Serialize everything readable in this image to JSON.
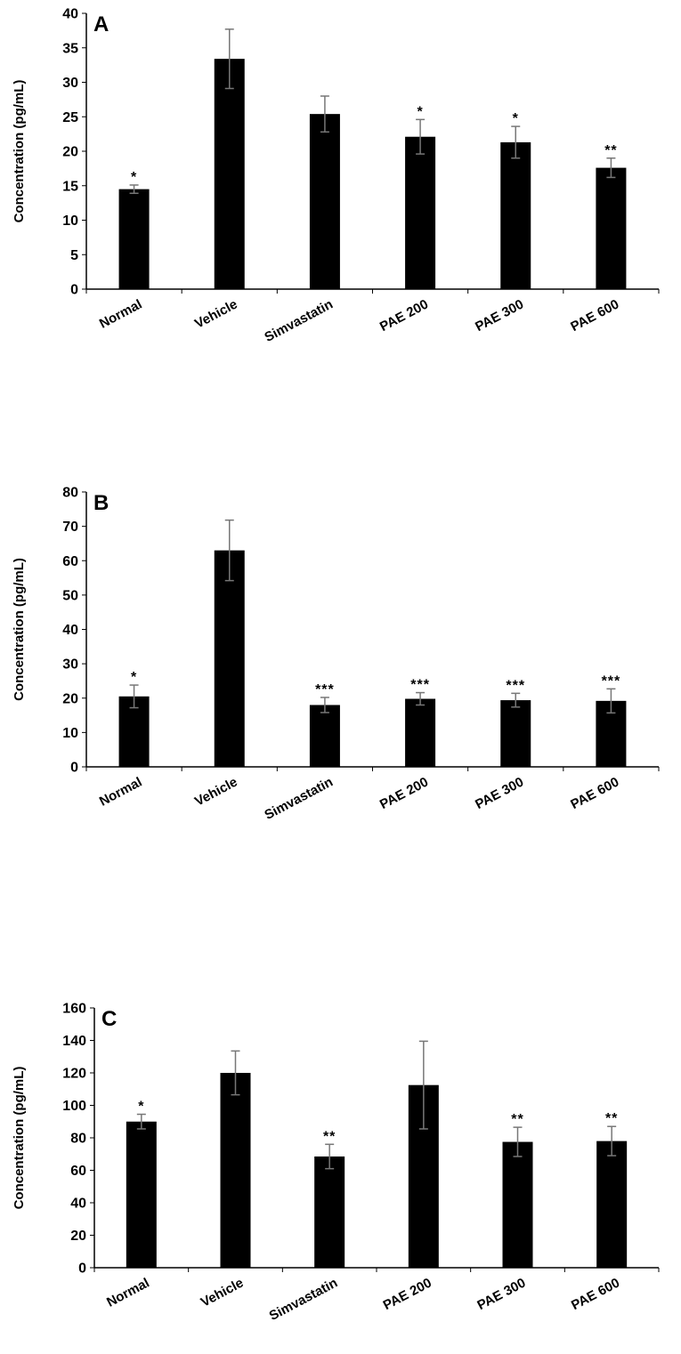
{
  "chart_data": [
    {
      "type": "bar",
      "panel_label": "A",
      "ylabel": "Concentration (pg/mL)",
      "xlabel": "",
      "ylim": [
        0,
        40
      ],
      "yticks": [
        0,
        5,
        10,
        15,
        20,
        25,
        30,
        35,
        40
      ],
      "categories": [
        "Normal",
        "Vehicle",
        "Simvastatin",
        "PAE 200",
        "PAE 300",
        "PAE 600"
      ],
      "values": [
        14.5,
        33.4,
        25.4,
        22.1,
        21.3,
        17.6
      ],
      "error": [
        0.6,
        4.3,
        2.6,
        2.5,
        2.3,
        1.4
      ],
      "significance": [
        "*",
        "",
        "",
        "*",
        "*",
        "**"
      ],
      "grid": false,
      "color": "#000000",
      "error_color": "#777777"
    },
    {
      "type": "bar",
      "panel_label": "B",
      "ylabel": "Concentration (pg/mL)",
      "xlabel": "",
      "ylim": [
        0,
        80
      ],
      "yticks": [
        0,
        10,
        20,
        30,
        40,
        50,
        60,
        70,
        80
      ],
      "categories": [
        "Normal",
        "Vehicle",
        "Simvastatin",
        "PAE 200",
        "PAE 300",
        "PAE 600"
      ],
      "values": [
        20.5,
        63,
        18,
        19.8,
        19.4,
        19.2
      ],
      "error": [
        3.3,
        8.8,
        2.2,
        1.8,
        2.0,
        3.5
      ],
      "significance": [
        "*",
        "",
        "***",
        "***",
        "***",
        "***"
      ],
      "grid": false,
      "color": "#000000",
      "error_color": "#777777"
    },
    {
      "type": "bar",
      "panel_label": "C",
      "ylabel": "Concentration (pg/mL)",
      "xlabel": "",
      "ylim": [
        0,
        160
      ],
      "yticks": [
        0,
        20,
        40,
        60,
        80,
        100,
        120,
        140,
        160
      ],
      "categories": [
        "Normal",
        "Vehicle",
        "Simvastatin",
        "PAE 200",
        "PAE 300",
        "PAE 600"
      ],
      "values": [
        90,
        120,
        68.5,
        112.5,
        77.5,
        78
      ],
      "error": [
        4.5,
        13.5,
        7.5,
        27,
        9,
        9
      ],
      "significance": [
        "*",
        "",
        "**",
        "",
        "**",
        "**"
      ],
      "grid": false,
      "color": "#000000",
      "error_color": "#777777"
    }
  ]
}
